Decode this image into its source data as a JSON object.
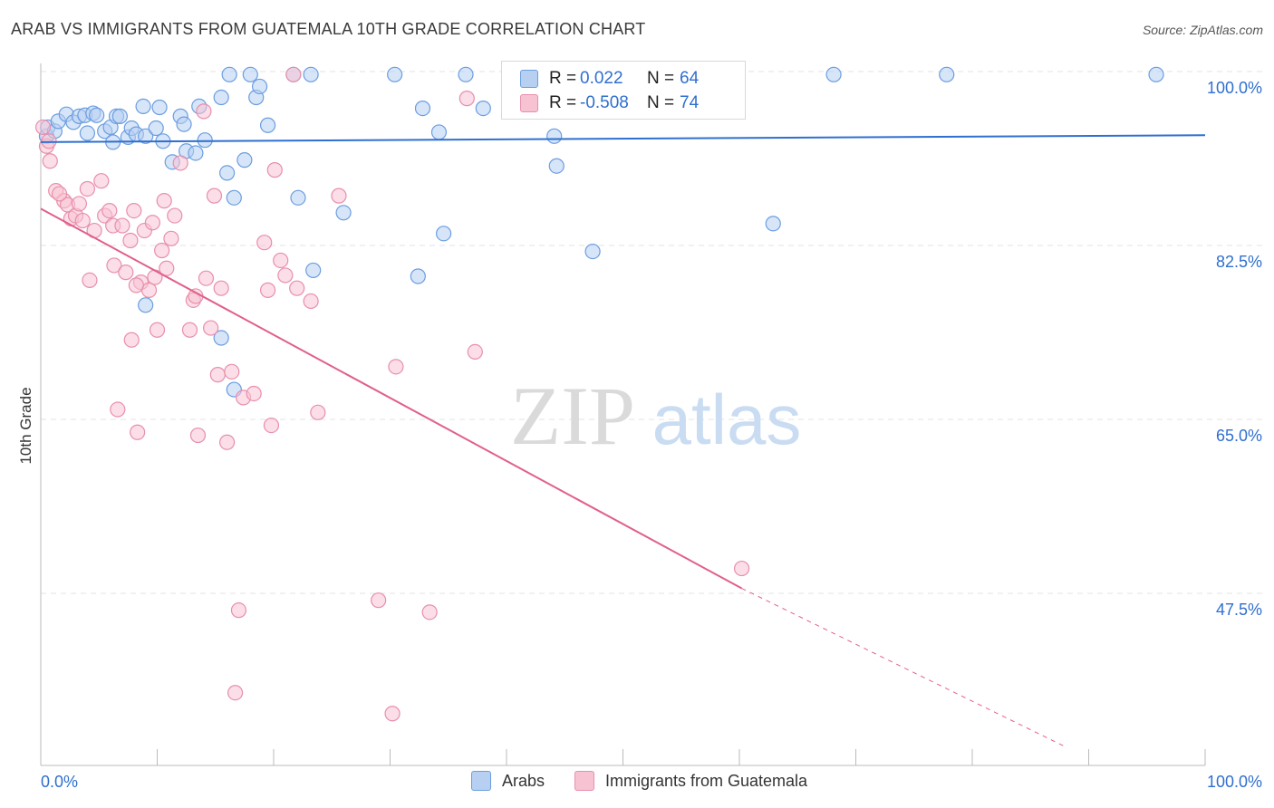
{
  "title": "ARAB VS IMMIGRANTS FROM GUATEMALA 10TH GRADE CORRELATION CHART",
  "source": "Source: ZipAtlas.com",
  "watermark": {
    "zip": "ZIP",
    "atlas": "atlas"
  },
  "legend_box": {
    "r_label": "R =",
    "n_label": "N =",
    "rows": [
      {
        "r": "0.022",
        "n": "64"
      },
      {
        "r": "-0.508",
        "n": "74"
      }
    ]
  },
  "colors": {
    "blue_fill": "#b7d0f2",
    "blue_stroke": "#6b9de0",
    "blue_line": "#2f6fd0",
    "pink_fill": "#f7c3d3",
    "pink_stroke": "#e88fab",
    "pink_line": "#e0608c",
    "axis_text_blue": "#2f6fd0",
    "grid": "#e3e3e3"
  },
  "chart_data": {
    "type": "scatter",
    "title": "ARAB VS IMMIGRANTS FROM GUATEMALA 10TH GRADE CORRELATION CHART",
    "xlabel": "",
    "ylabel": "10th Grade",
    "xlim": [
      0,
      100
    ],
    "ylim": [
      32,
      102
    ],
    "x_tick_labels": [
      "0.0%",
      "100.0%"
    ],
    "y_ticks": [
      47.5,
      65.0,
      82.5,
      100.0
    ],
    "y_tick_labels": [
      "47.5%",
      "65.0%",
      "82.5%",
      "100.0%"
    ],
    "grid": true,
    "legend_position": "bottom",
    "series": [
      {
        "name": "Arabs",
        "r": 0.022,
        "n": 64,
        "trend": {
          "x": [
            0,
            100
          ],
          "y": [
            92.9,
            93.6
          ],
          "dashed_from": null
        },
        "points": [
          [
            0.5,
            93.5
          ],
          [
            0.6,
            94.4
          ],
          [
            1.2,
            94.0
          ],
          [
            1.5,
            95.0
          ],
          [
            2.2,
            95.7
          ],
          [
            2.8,
            94.9
          ],
          [
            3.3,
            95.5
          ],
          [
            3.8,
            95.6
          ],
          [
            4.0,
            93.8
          ],
          [
            4.5,
            95.8
          ],
          [
            4.8,
            95.6
          ],
          [
            5.5,
            94.0
          ],
          [
            6.0,
            94.4
          ],
          [
            6.2,
            92.9
          ],
          [
            6.5,
            95.5
          ],
          [
            6.8,
            95.5
          ],
          [
            7.5,
            93.4
          ],
          [
            7.8,
            94.3
          ],
          [
            8.2,
            93.7
          ],
          [
            8.8,
            96.5
          ],
          [
            9.0,
            93.5
          ],
          [
            9.9,
            94.3
          ],
          [
            10.5,
            93.0
          ],
          [
            10.2,
            96.4
          ],
          [
            11.3,
            90.9
          ],
          [
            12.0,
            95.5
          ],
          [
            12.3,
            94.7
          ],
          [
            12.5,
            92.0
          ],
          [
            13.3,
            91.8
          ],
          [
            13.6,
            96.5
          ],
          [
            14.1,
            93.1
          ],
          [
            15.5,
            97.4
          ],
          [
            16.0,
            89.8
          ],
          [
            16.2,
            99.7
          ],
          [
            16.6,
            87.3
          ],
          [
            17.5,
            91.1
          ],
          [
            18.0,
            99.7
          ],
          [
            18.5,
            97.4
          ],
          [
            18.8,
            98.5
          ],
          [
            19.5,
            94.6
          ],
          [
            21.7,
            99.7
          ],
          [
            22.1,
            87.3
          ],
          [
            23.4,
            80.0
          ],
          [
            26.0,
            85.8
          ],
          [
            30.4,
            99.7
          ],
          [
            32.4,
            79.4
          ],
          [
            32.8,
            96.3
          ],
          [
            34.2,
            93.9
          ],
          [
            34.6,
            83.7
          ],
          [
            38.0,
            96.3
          ],
          [
            44.1,
            93.5
          ],
          [
            44.3,
            90.5
          ],
          [
            47.4,
            81.9
          ],
          [
            62.9,
            84.7
          ],
          [
            68.1,
            99.7
          ],
          [
            77.8,
            99.7
          ],
          [
            95.8,
            99.7
          ],
          [
            9.0,
            76.5
          ],
          [
            15.5,
            73.2
          ],
          [
            16.6,
            68.0
          ],
          [
            23.2,
            99.7
          ],
          [
            36.5,
            99.7
          ],
          [
            45.5,
            99.7
          ],
          [
            55.1,
            99.7
          ]
        ]
      },
      {
        "name": "Immigrants from Guatemala",
        "r": -0.508,
        "n": 74,
        "trend": {
          "x": [
            0,
            60.2
          ],
          "y": [
            86.2,
            48.0
          ],
          "dashed_to": [
            88.1,
            32.0
          ]
        },
        "points": [
          [
            0.2,
            94.4
          ],
          [
            0.5,
            92.5
          ],
          [
            0.8,
            91.0
          ],
          [
            1.3,
            88.0
          ],
          [
            2.0,
            87.0
          ],
          [
            2.3,
            86.6
          ],
          [
            2.6,
            85.2
          ],
          [
            3.0,
            85.5
          ],
          [
            3.3,
            86.7
          ],
          [
            3.6,
            85.0
          ],
          [
            4.0,
            88.2
          ],
          [
            4.2,
            79.0
          ],
          [
            4.6,
            84.0
          ],
          [
            5.2,
            89.0
          ],
          [
            5.5,
            85.5
          ],
          [
            5.9,
            86.0
          ],
          [
            6.2,
            84.5
          ],
          [
            6.3,
            80.5
          ],
          [
            6.6,
            66.0
          ],
          [
            7.0,
            84.5
          ],
          [
            7.3,
            79.8
          ],
          [
            7.7,
            83.0
          ],
          [
            7.8,
            73.0
          ],
          [
            8.0,
            86.0
          ],
          [
            8.3,
            63.7
          ],
          [
            8.6,
            78.8
          ],
          [
            8.9,
            84.0
          ],
          [
            9.3,
            78.0
          ],
          [
            9.6,
            84.8
          ],
          [
            9.8,
            79.3
          ],
          [
            10.0,
            74.0
          ],
          [
            10.4,
            82.0
          ],
          [
            10.6,
            87.0
          ],
          [
            10.8,
            80.2
          ],
          [
            11.2,
            83.2
          ],
          [
            11.5,
            85.5
          ],
          [
            12.0,
            90.8
          ],
          [
            12.8,
            74.0
          ],
          [
            13.1,
            77.0
          ],
          [
            13.3,
            77.4
          ],
          [
            13.5,
            63.4
          ],
          [
            14.0,
            96.0
          ],
          [
            14.2,
            79.2
          ],
          [
            14.6,
            74.2
          ],
          [
            14.9,
            87.5
          ],
          [
            15.2,
            69.5
          ],
          [
            15.5,
            78.2
          ],
          [
            16.0,
            62.7
          ],
          [
            16.4,
            69.8
          ],
          [
            16.7,
            37.5
          ],
          [
            17.0,
            45.8
          ],
          [
            17.4,
            67.2
          ],
          [
            18.3,
            67.6
          ],
          [
            19.2,
            82.8
          ],
          [
            19.5,
            78.0
          ],
          [
            19.8,
            64.4
          ],
          [
            20.1,
            90.1
          ],
          [
            20.6,
            81.0
          ],
          [
            21.0,
            79.5
          ],
          [
            21.7,
            99.7
          ],
          [
            22.0,
            78.2
          ],
          [
            23.2,
            76.9
          ],
          [
            23.8,
            65.7
          ],
          [
            25.6,
            87.5
          ],
          [
            29.0,
            46.8
          ],
          [
            30.2,
            35.4
          ],
          [
            30.5,
            70.3
          ],
          [
            33.4,
            45.6
          ],
          [
            36.6,
            97.3
          ],
          [
            37.3,
            71.8
          ],
          [
            60.2,
            50.0
          ],
          [
            0.7,
            93.0
          ],
          [
            1.6,
            87.7
          ],
          [
            8.2,
            78.5
          ]
        ]
      }
    ]
  },
  "bottom_legend": [
    {
      "label": "Arabs"
    },
    {
      "label": "Immigrants from Guatemala"
    }
  ]
}
